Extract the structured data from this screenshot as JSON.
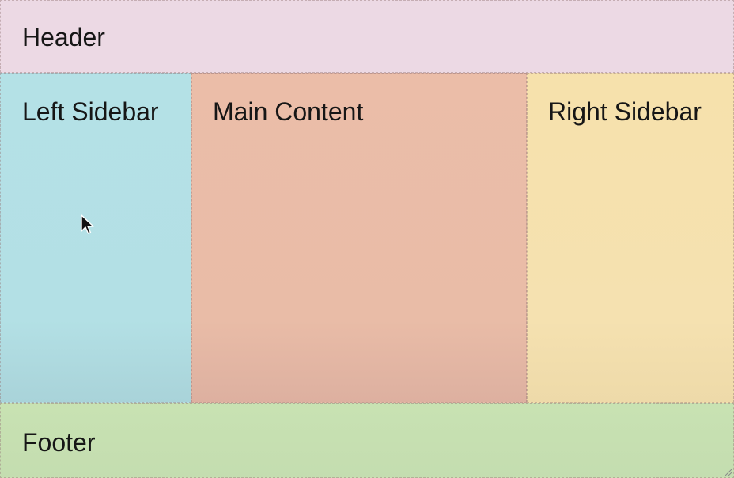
{
  "regions": {
    "header": {
      "label": "Header"
    },
    "left_sidebar": {
      "label": "Left Sidebar"
    },
    "main_content": {
      "label": "Main Content"
    },
    "right_sidebar": {
      "label": "Right Sidebar"
    },
    "footer": {
      "label": "Footer"
    }
  },
  "colors": {
    "header": "#ecd9e4",
    "left_sidebar": "#b4e1e6",
    "main_content": "#ebbda8",
    "right_sidebar": "#f6e1ac",
    "footer": "#c8e2b2"
  },
  "icons": {
    "cursor": "cursor-arrow-icon",
    "resize": "resize-grip-icon"
  }
}
